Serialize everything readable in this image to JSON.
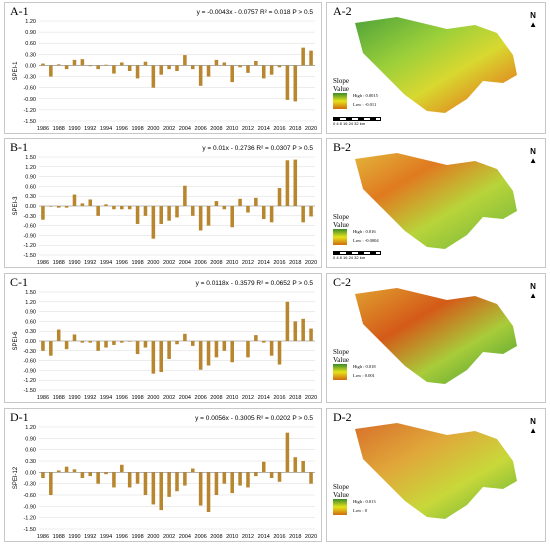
{
  "panels": [
    {
      "chart_label": "A-1",
      "map_label": "A-2",
      "equation": "y = -0.0043x - 0.0757 R² = 0.018 P > 0.5",
      "map_legend": {
        "title": "Slope",
        "subtitle": "Value",
        "high": "High : 0.0015",
        "low": "Low : -0.011"
      }
    },
    {
      "chart_label": "B-1",
      "map_label": "B-2",
      "equation": "y = 0.01x - 0.2736 R² = 0.0307 P > 0.5",
      "map_legend": {
        "title": "Slope",
        "subtitle": "Value",
        "high": "High : 0.016",
        "low": "Low : -0.0004"
      }
    },
    {
      "chart_label": "C-1",
      "map_label": "C-2",
      "equation": "y = 0.0118x - 0.3579 R² = 0.0652 P > 0.5",
      "map_legend": {
        "title": "Slope",
        "subtitle": "Value",
        "high": "High : 0.018",
        "low": "Low : 0.001"
      }
    },
    {
      "chart_label": "D-1",
      "map_label": "D-2",
      "equation": "y = 0.0056x - 0.3005 R² = 0.0202 P > 0.5",
      "map_legend": {
        "title": "Slope",
        "subtitle": "Value",
        "high": "High : 0.013",
        "low": "Low : 0"
      }
    }
  ],
  "map_common": {
    "north": "N",
    "scale_text": "0 4 8   16   24   32",
    "scale_unit": "km"
  },
  "colors": {
    "bar": "#b8862e",
    "grid": "#d9d9d9"
  },
  "chart_data": [
    {
      "type": "bar",
      "ylabel": "SPEI-1",
      "ylim": [
        -1.5,
        1.2
      ],
      "yticks": [
        "1.20",
        "0.90",
        "0.60",
        "0.30",
        "0.00",
        "-0.30",
        "-0.60",
        "-0.90",
        "-1.20",
        "-1.50"
      ],
      "categories": [
        "1986",
        "1987",
        "1988",
        "1989",
        "1990",
        "1991",
        "1992",
        "1993",
        "1994",
        "1995",
        "1996",
        "1997",
        "1998",
        "1999",
        "2000",
        "2001",
        "2002",
        "2003",
        "2004",
        "2005",
        "2006",
        "2007",
        "2008",
        "2009",
        "2010",
        "2011",
        "2012",
        "2013",
        "2014",
        "2015",
        "2016",
        "2017",
        "2018",
        "2019",
        "2020"
      ],
      "xticks": [
        "1986",
        "1988",
        "1990",
        "1992",
        "1994",
        "1996",
        "1998",
        "2000",
        "2002",
        "2004",
        "2006",
        "2008",
        "2010",
        "2012",
        "2014",
        "2016",
        "2018",
        "2020"
      ],
      "values": [
        0.05,
        -0.3,
        0.03,
        -0.1,
        0.15,
        0.17,
        -0.02,
        -0.1,
        0.02,
        -0.22,
        0.08,
        -0.15,
        -0.35,
        0.1,
        -0.6,
        -0.25,
        -0.1,
        -0.15,
        0.28,
        -0.1,
        -0.55,
        -0.3,
        0.15,
        0.08,
        -0.45,
        -0.05,
        -0.2,
        0.12,
        -0.35,
        -0.25,
        -0.05,
        -0.93,
        -0.97,
        0.48,
        0.4
      ]
    },
    {
      "type": "bar",
      "ylabel": "SPEI-3",
      "ylim": [
        -1.5,
        1.5
      ],
      "yticks": [
        "1.50",
        "1.20",
        "0.90",
        "0.60",
        "0.30",
        "0.00",
        "-0.30",
        "-0.60",
        "-0.90",
        "-1.20",
        "-1.50"
      ],
      "categories": [
        "1986",
        "1987",
        "1988",
        "1989",
        "1990",
        "1991",
        "1992",
        "1993",
        "1994",
        "1995",
        "1996",
        "1997",
        "1998",
        "1999",
        "2000",
        "2001",
        "2002",
        "2003",
        "2004",
        "2005",
        "2006",
        "2007",
        "2008",
        "2009",
        "2010",
        "2011",
        "2012",
        "2013",
        "2014",
        "2015",
        "2016",
        "2017",
        "2018",
        "2019",
        "2020"
      ],
      "xticks": [
        "1986",
        "1988",
        "1990",
        "1992",
        "1994",
        "1996",
        "1998",
        "2000",
        "2002",
        "2004",
        "2006",
        "2008",
        "2010",
        "2012",
        "2014",
        "2016",
        "2018",
        "2020"
      ],
      "values": [
        -0.42,
        -0.02,
        -0.05,
        -0.05,
        0.35,
        0.08,
        0.2,
        -0.3,
        0.05,
        -0.1,
        -0.1,
        -0.1,
        -0.55,
        -0.3,
        -1.0,
        -0.55,
        -0.45,
        -0.35,
        0.62,
        -0.3,
        -0.75,
        -0.6,
        0.15,
        -0.1,
        -0.65,
        0.22,
        -0.2,
        0.25,
        -0.4,
        -0.5,
        0.55,
        1.4,
        1.42,
        -0.5,
        -0.32
      ]
    },
    {
      "type": "bar",
      "ylabel": "SPEI-6",
      "ylim": [
        -1.5,
        1.5
      ],
      "yticks": [
        "1.50",
        "1.20",
        "0.90",
        "0.60",
        "0.30",
        "0.00",
        "-0.30",
        "-0.60",
        "-0.90",
        "-1.20",
        "-1.50"
      ],
      "categories": [
        "1986",
        "1987",
        "1988",
        "1989",
        "1990",
        "1991",
        "1992",
        "1993",
        "1994",
        "1995",
        "1996",
        "1997",
        "1998",
        "1999",
        "2000",
        "2001",
        "2002",
        "2003",
        "2004",
        "2005",
        "2006",
        "2007",
        "2008",
        "2009",
        "2010",
        "2011",
        "2012",
        "2013",
        "2014",
        "2015",
        "2016",
        "2017",
        "2018",
        "2019",
        "2020"
      ],
      "xticks": [
        "1986",
        "1988",
        "1990",
        "1992",
        "1994",
        "1996",
        "1998",
        "2000",
        "2002",
        "2004",
        "2006",
        "2008",
        "2010",
        "2012",
        "2014",
        "2016",
        "2018",
        "2020"
      ],
      "values": [
        -0.3,
        -0.45,
        0.35,
        -0.25,
        0.2,
        -0.05,
        -0.05,
        -0.3,
        -0.2,
        -0.12,
        -0.05,
        -0.02,
        -0.4,
        -0.2,
        -1.0,
        -0.95,
        -0.55,
        -0.1,
        0.22,
        -0.15,
        -0.88,
        -0.75,
        -0.5,
        -0.3,
        -0.65,
        0.0,
        -0.5,
        0.18,
        -0.05,
        -0.45,
        -0.72,
        1.2,
        0.6,
        0.68,
        0.38
      ]
    },
    {
      "type": "bar",
      "ylabel": "SPEI-12",
      "ylim": [
        -1.5,
        1.2
      ],
      "yticks": [
        "1.20",
        "0.90",
        "0.60",
        "0.30",
        "0.00",
        "-0.30",
        "-0.60",
        "-0.90",
        "-1.20",
        "-1.50"
      ],
      "categories": [
        "1986",
        "1987",
        "1988",
        "1989",
        "1990",
        "1991",
        "1992",
        "1993",
        "1994",
        "1995",
        "1996",
        "1997",
        "1998",
        "1999",
        "2000",
        "2001",
        "2002",
        "2003",
        "2004",
        "2005",
        "2006",
        "2007",
        "2008",
        "2009",
        "2010",
        "2011",
        "2012",
        "2013",
        "2014",
        "2015",
        "2016",
        "2017",
        "2018",
        "2019",
        "2020"
      ],
      "xticks": [
        "1986",
        "1988",
        "1990",
        "1992",
        "1994",
        "1996",
        "1998",
        "2000",
        "2002",
        "2004",
        "2006",
        "2008",
        "2010",
        "2012",
        "2014",
        "2016",
        "2018",
        "2020"
      ],
      "values": [
        -0.15,
        -0.6,
        0.05,
        0.15,
        0.08,
        -0.15,
        -0.1,
        -0.3,
        -0.05,
        -0.4,
        0.2,
        -0.4,
        -0.3,
        -0.6,
        -0.85,
        -1.0,
        -0.65,
        -0.5,
        -0.35,
        0.1,
        -0.88,
        -1.05,
        -0.6,
        -0.3,
        -0.55,
        -0.35,
        -0.4,
        -0.1,
        0.28,
        -0.15,
        -0.25,
        1.05,
        0.4,
        0.3,
        -0.3
      ]
    }
  ]
}
